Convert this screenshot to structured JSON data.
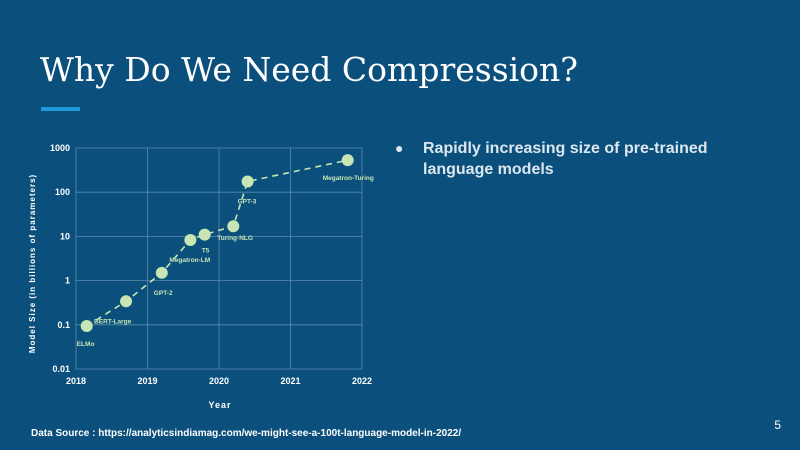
{
  "slide": {
    "title": "Why Do We Need Compression?",
    "bullets": [
      "Rapidly increasing size of pre-trained language models"
    ],
    "page_number": "5",
    "source": "Data Source : https://analyticsindiamag.com/we-might-see-a-100t-language-model-in-2022/"
  },
  "colors": {
    "background": "#0b4f7c",
    "accent": "#1e9bd7",
    "marker": "#c8e6b4",
    "grid": "#5a8cb0"
  },
  "chart_data": {
    "type": "scatter",
    "title": "",
    "xlabel": "Year",
    "ylabel": "Model Size (in billions of parameters)",
    "xlim": [
      2018,
      2022
    ],
    "ylim": [
      0.01,
      1000
    ],
    "yscale": "log",
    "grid": true,
    "x_ticks": [
      "2018",
      "2019",
      "2020",
      "2021",
      "2022"
    ],
    "y_ticks": [
      "0.01",
      "0.1",
      "1",
      "10",
      "100",
      "1000"
    ],
    "trend_line": "dashed",
    "points": [
      {
        "label": "ELMo",
        "x": 2018.15,
        "y": 0.094
      },
      {
        "label": "BERT-Large",
        "x": 2018.7,
        "y": 0.34
      },
      {
        "label": "GPT-2",
        "x": 2019.2,
        "y": 1.5
      },
      {
        "label": "Megatron-LM",
        "x": 2019.6,
        "y": 8.3
      },
      {
        "label": "T5",
        "x": 2019.8,
        "y": 11
      },
      {
        "label": "Turing-NLG",
        "x": 2020.2,
        "y": 17
      },
      {
        "label": "GPT-3",
        "x": 2020.4,
        "y": 175
      },
      {
        "label": "Megatron-Turing",
        "x": 2021.8,
        "y": 530
      }
    ]
  }
}
